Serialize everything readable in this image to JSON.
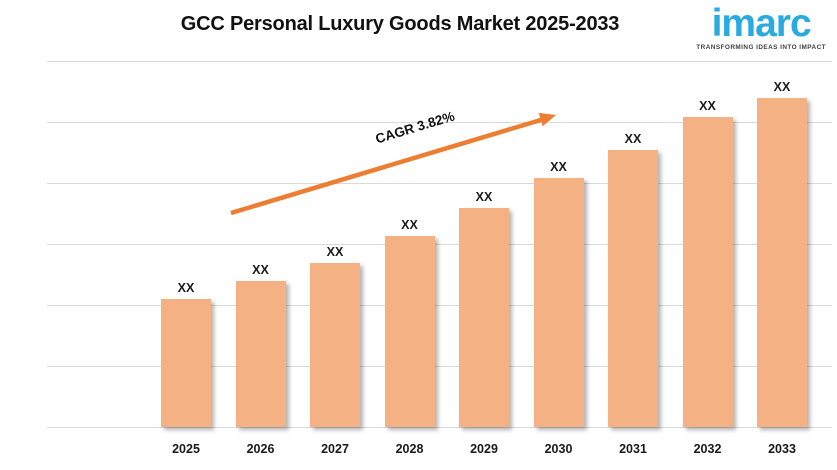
{
  "header": {
    "title": "GCC Personal Luxury Goods Market 2025-2033",
    "logo": {
      "text": "imarc",
      "tagline": "TRANSFORMING IDEAS INTO IMPACT",
      "brand_color": "#29ABE2"
    }
  },
  "chart_data": {
    "type": "bar",
    "title": "GCC Personal Luxury Goods Market 2025-2033",
    "categories": [
      "2025",
      "2026",
      "2027",
      "2028",
      "2029",
      "2030",
      "2031",
      "2032",
      "2033"
    ],
    "value_labels": [
      "XX",
      "XX",
      "XX",
      "XX",
      "XX",
      "XX",
      "XX",
      "XX",
      "XX"
    ],
    "bar_heights_pct_of_plot": [
      35.0,
      39.9,
      44.8,
      52.2,
      59.8,
      68.0,
      75.7,
      84.7,
      89.9
    ],
    "annotation": "CAGR 3.82%",
    "xlabel": "",
    "ylabel": "",
    "y_axis_visible": false,
    "legend": "none",
    "gridline_count": 7,
    "bar_color": "#F4B183",
    "arrow_color": "#ED7D31",
    "gridline_color": "#D9D9D9"
  }
}
